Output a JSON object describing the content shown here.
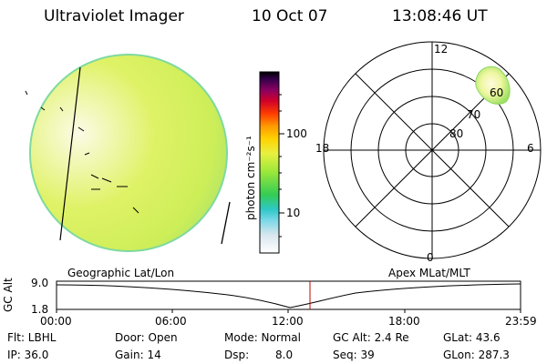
{
  "header": {
    "instrument": "Ultraviolet Imager",
    "date": "10 Oct 07",
    "time": "13:08:46 UT"
  },
  "colorbar": {
    "unit_label": "photon cm⁻²s⁻¹",
    "ticks": [
      "100",
      "10"
    ]
  },
  "polar_plot": {
    "hour_labels": [
      "12",
      "18",
      "6",
      "0"
    ],
    "lat_labels": [
      "60",
      "70",
      "80"
    ]
  },
  "timeline": {
    "yaxis_label": "GC Alt",
    "ymax": "9.0",
    "ymin": "1.8",
    "left_caption": "Geographic Lat/Lon",
    "right_caption": "Apex MLat/MLT",
    "xticks": [
      "00:00",
      "06:00",
      "12:00",
      "18:00",
      "23:59"
    ]
  },
  "info": {
    "flt": "Flt: LBHL",
    "ip": "IP: 36.0",
    "door": "Door: Open",
    "gain": "Gain: 14",
    "mode": "Mode: Normal",
    "dsp_label": "Dsp:",
    "dsp_value": "8.0",
    "gcalt": "GC Alt: 2.4 Re",
    "seq": "Seq: 39",
    "glat": "GLat:  43.6",
    "glon": "GLon: 287.3"
  },
  "colors": {
    "disk_bright": "#f2f7c8",
    "disk_main": "#d6f05a",
    "disk_edge": "#9fe06a",
    "marker_line": "#c00000"
  }
}
